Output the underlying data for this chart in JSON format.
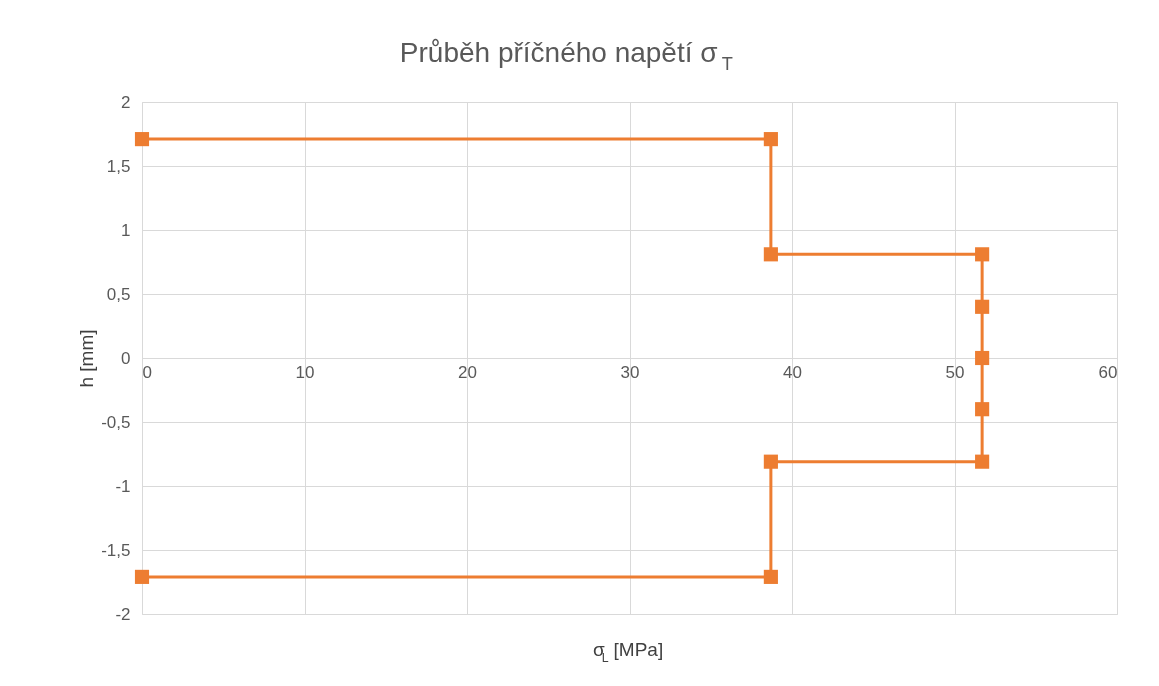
{
  "chart_data": {
    "type": "line",
    "title": "Průběh příčného napětí  σ$_{T}$",
    "xlabel": "σ$_{L}$ [MPa]",
    "ylabel": "h [mm]",
    "x": [
      0,
      38.7,
      38.7,
      51.7,
      51.7,
      51.7,
      51.7,
      51.7,
      38.7,
      38.7,
      0
    ],
    "series": [
      {
        "color": "#ed7d31",
        "values": [
          1.71,
          1.71,
          0.81,
          0.81,
          0.4,
          0,
          -0.4,
          -0.81,
          -0.81,
          -1.71,
          -1.71
        ]
      }
    ],
    "xlim": [
      0,
      60
    ],
    "xticks": [
      0,
      10,
      20,
      30,
      40,
      50,
      60
    ],
    "ylim": [
      -2,
      2
    ],
    "yticks": [
      -2,
      {
        "value": -1.5,
        "label": "-1,5"
      },
      -1,
      {
        "value": -0.5,
        "label": "-0,5"
      },
      0,
      {
        "value": 0.5,
        "label": "0,5"
      },
      1,
      {
        "value": 1.5,
        "label": "1,5"
      },
      2
    ],
    "grid": true,
    "marker": "square",
    "line_style": "solid"
  }
}
